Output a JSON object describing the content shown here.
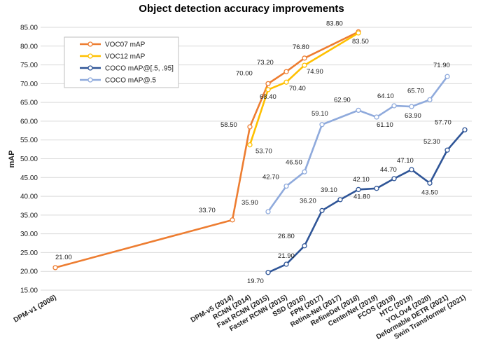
{
  "chart_data": {
    "type": "line",
    "title": "Object detection accuracy improvements",
    "xlabel": "",
    "ylabel": "mAP",
    "ylim": [
      15.0,
      85.0
    ],
    "yticks": [
      "15.00",
      "20.00",
      "25.00",
      "30.00",
      "35.00",
      "40.00",
      "45.00",
      "50.00",
      "55.00",
      "60.00",
      "65.00",
      "70.00",
      "75.00",
      "80.00",
      "85.00"
    ],
    "grid": true,
    "legend_position": "top-left",
    "categories": [
      "DPM-v1 (2008)",
      "DPM-v5 (2014)",
      "RCNN (2014)",
      "Fast RCNN (2015)",
      "Faster RCNN (2015)",
      "SSD (2016)",
      "FPN (2017)",
      "Retina-Net (2017)",
      "RefineDet (2018)",
      "CenterNet (2019)",
      "FCOS (2019)",
      "HTC (2019)",
      "YOLOv4 (2020)",
      "Deformable DETR (2021)",
      "Swin Transformer (2021)"
    ],
    "series": [
      {
        "name": "VOC07 mAP",
        "color": "#ED7D31",
        "values": [
          21.0,
          33.7,
          58.5,
          70.0,
          73.2,
          76.8,
          null,
          null,
          83.8,
          null,
          null,
          null,
          null,
          null,
          null
        ]
      },
      {
        "name": "VOC12 mAP",
        "color": "#FFC000",
        "values": [
          null,
          null,
          53.7,
          68.4,
          70.4,
          74.9,
          null,
          null,
          83.5,
          null,
          null,
          null,
          null,
          null,
          null
        ]
      },
      {
        "name": "COCO mAP@[.5, .95]",
        "color": "#2F5597",
        "values": [
          null,
          null,
          null,
          19.7,
          21.9,
          26.8,
          36.2,
          39.1,
          41.8,
          42.1,
          44.7,
          47.1,
          43.5,
          52.3,
          57.7
        ]
      },
      {
        "name": "COCO mAP@.5",
        "color": "#8FAADC",
        "values": [
          null,
          null,
          null,
          35.9,
          42.7,
          46.5,
          59.1,
          null,
          62.9,
          61.1,
          64.1,
          63.9,
          65.7,
          71.9,
          null
        ]
      }
    ]
  }
}
